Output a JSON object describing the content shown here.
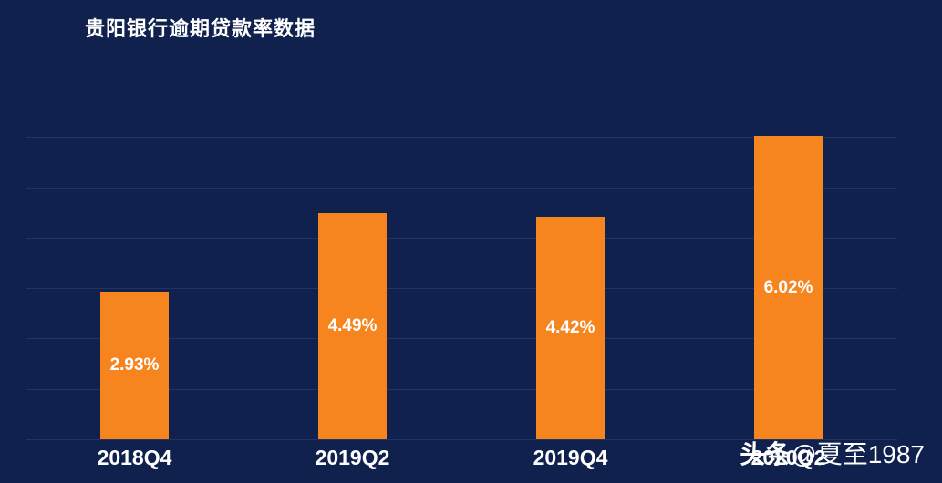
{
  "page": {
    "background_color": "#10214E",
    "text_color": "#FFFFFF"
  },
  "chart_data": {
    "type": "bar",
    "title": "贵阳银行逾期贷款率数据",
    "categories": [
      "2018Q4",
      "2019Q2",
      "2019Q4",
      "2020Q2"
    ],
    "values": [
      2.93,
      4.49,
      4.42,
      6.02
    ],
    "data_labels": [
      "2.93%",
      "4.49%",
      "4.42%",
      "6.02%"
    ],
    "xlabel": "",
    "ylabel": "",
    "ylim": [
      0,
      7
    ],
    "gridline_interval": 1,
    "grid": true,
    "legend_position": "none",
    "bar_color": "#F6851F",
    "data_label_color": "#FFFFFF",
    "category_label_color": "#FFFFFF",
    "gridline_color": "#233464",
    "title_color": "#FFFFFF"
  },
  "watermark": {
    "brand": "头条",
    "handle": "@夏至1987",
    "color": "#FFFFFF"
  }
}
